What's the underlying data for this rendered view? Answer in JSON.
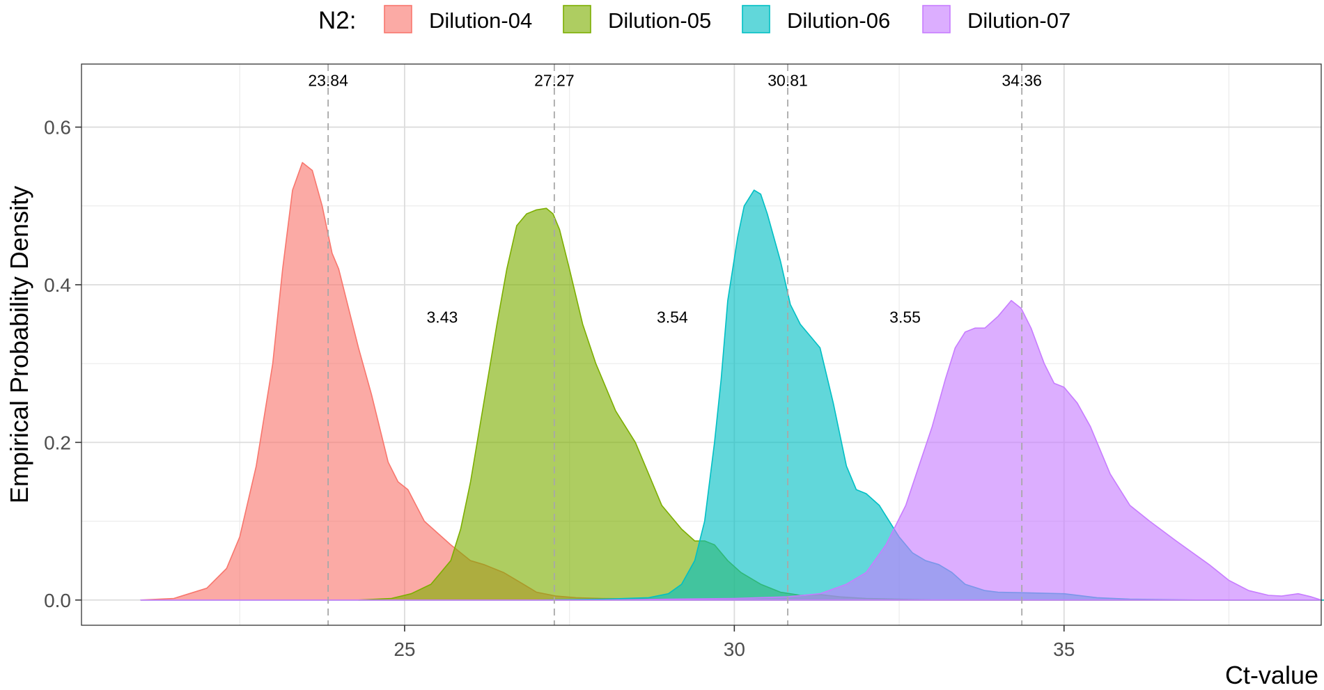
{
  "chart_data": {
    "type": "area",
    "title": "",
    "xlabel": "Ct-value",
    "ylabel": "Empirical Probability Density",
    "xlim": [
      20.1,
      38.9
    ],
    "ylim": [
      -0.032,
      0.68
    ],
    "x_ticks": [
      25,
      30,
      35
    ],
    "x_tick_labels": [
      "25",
      "30",
      "35"
    ],
    "y_ticks": [
      0.0,
      0.2,
      0.4,
      0.6
    ],
    "y_tick_labels": [
      "0.0",
      "0.2",
      "0.4",
      "0.6"
    ],
    "x_minor_grid": [
      22.5,
      27.5,
      32.5,
      37.5
    ],
    "y_minor_grid": [
      0.1,
      0.3,
      0.5
    ],
    "grid": true,
    "legend": {
      "title": "N2:",
      "position": "top"
    },
    "series": [
      {
        "name": "Dilution-04",
        "fill": "#F8766D",
        "stroke": "#F8766D",
        "points": [
          [
            21.0,
            0.0
          ],
          [
            21.5,
            0.002
          ],
          [
            22.0,
            0.015
          ],
          [
            22.3,
            0.04
          ],
          [
            22.5,
            0.08
          ],
          [
            22.75,
            0.17
          ],
          [
            23.0,
            0.3
          ],
          [
            23.15,
            0.42
          ],
          [
            23.3,
            0.52
          ],
          [
            23.45,
            0.555
          ],
          [
            23.6,
            0.545
          ],
          [
            23.75,
            0.5
          ],
          [
            23.9,
            0.44
          ],
          [
            24.0,
            0.42
          ],
          [
            24.3,
            0.32
          ],
          [
            24.5,
            0.26
          ],
          [
            24.75,
            0.175
          ],
          [
            24.9,
            0.15
          ],
          [
            25.05,
            0.14
          ],
          [
            25.3,
            0.1
          ],
          [
            25.5,
            0.085
          ],
          [
            25.7,
            0.07
          ],
          [
            26.0,
            0.05
          ],
          [
            26.2,
            0.045
          ],
          [
            26.5,
            0.035
          ],
          [
            26.8,
            0.02
          ],
          [
            27.0,
            0.01
          ],
          [
            27.3,
            0.005
          ],
          [
            27.6,
            0.003
          ],
          [
            28.0,
            0.002
          ],
          [
            29.0,
            0.001
          ],
          [
            30.0,
            0.0
          ],
          [
            39.0,
            0.0
          ]
        ]
      },
      {
        "name": "Dilution-05",
        "fill": "#7CAE00",
        "stroke": "#7CAE00",
        "points": [
          [
            24.3,
            0.0
          ],
          [
            24.8,
            0.002
          ],
          [
            25.1,
            0.008
          ],
          [
            25.4,
            0.02
          ],
          [
            25.7,
            0.05
          ],
          [
            25.85,
            0.09
          ],
          [
            26.0,
            0.15
          ],
          [
            26.2,
            0.25
          ],
          [
            26.4,
            0.35
          ],
          [
            26.55,
            0.42
          ],
          [
            26.7,
            0.475
          ],
          [
            26.85,
            0.49
          ],
          [
            27.0,
            0.495
          ],
          [
            27.15,
            0.497
          ],
          [
            27.25,
            0.49
          ],
          [
            27.35,
            0.47
          ],
          [
            27.5,
            0.42
          ],
          [
            27.7,
            0.35
          ],
          [
            27.9,
            0.3
          ],
          [
            28.0,
            0.28
          ],
          [
            28.2,
            0.24
          ],
          [
            28.5,
            0.2
          ],
          [
            28.7,
            0.16
          ],
          [
            28.9,
            0.12
          ],
          [
            29.2,
            0.09
          ],
          [
            29.4,
            0.075
          ],
          [
            29.55,
            0.075
          ],
          [
            29.7,
            0.07
          ],
          [
            29.9,
            0.05
          ],
          [
            30.1,
            0.035
          ],
          [
            30.4,
            0.02
          ],
          [
            30.7,
            0.01
          ],
          [
            31.0,
            0.006
          ],
          [
            31.3,
            0.007
          ],
          [
            31.6,
            0.004
          ],
          [
            32.0,
            0.002
          ],
          [
            33.0,
            0.0
          ],
          [
            39.0,
            0.0
          ]
        ]
      },
      {
        "name": "Dilution-06",
        "fill": "#00BFC4",
        "stroke": "#00BFC4",
        "points": [
          [
            21.0,
            0.0
          ],
          [
            26.0,
            0.0
          ],
          [
            27.0,
            0.0
          ],
          [
            28.0,
            0.001
          ],
          [
            28.7,
            0.003
          ],
          [
            29.0,
            0.008
          ],
          [
            29.2,
            0.02
          ],
          [
            29.4,
            0.05
          ],
          [
            29.55,
            0.1
          ],
          [
            29.7,
            0.2
          ],
          [
            29.8,
            0.28
          ],
          [
            29.9,
            0.38
          ],
          [
            30.05,
            0.46
          ],
          [
            30.15,
            0.5
          ],
          [
            30.3,
            0.52
          ],
          [
            30.4,
            0.515
          ],
          [
            30.5,
            0.49
          ],
          [
            30.7,
            0.43
          ],
          [
            30.85,
            0.375
          ],
          [
            31.0,
            0.35
          ],
          [
            31.15,
            0.335
          ],
          [
            31.3,
            0.32
          ],
          [
            31.5,
            0.25
          ],
          [
            31.7,
            0.17
          ],
          [
            31.85,
            0.14
          ],
          [
            32.0,
            0.135
          ],
          [
            32.2,
            0.12
          ],
          [
            32.35,
            0.1
          ],
          [
            32.5,
            0.08
          ],
          [
            32.7,
            0.06
          ],
          [
            32.9,
            0.05
          ],
          [
            33.1,
            0.045
          ],
          [
            33.3,
            0.035
          ],
          [
            33.5,
            0.02
          ],
          [
            33.8,
            0.012
          ],
          [
            34.0,
            0.01
          ],
          [
            34.5,
            0.009
          ],
          [
            35.0,
            0.008
          ],
          [
            35.5,
            0.003
          ],
          [
            36.0,
            0.001
          ],
          [
            37.0,
            0.0
          ],
          [
            39.0,
            0.0
          ]
        ]
      },
      {
        "name": "Dilution-07",
        "fill": "#C77CFF",
        "stroke": "#C77CFF",
        "points": [
          [
            21.0,
            0.0
          ],
          [
            26.0,
            0.0
          ],
          [
            28.0,
            0.0
          ],
          [
            29.0,
            0.001
          ],
          [
            30.0,
            0.002
          ],
          [
            30.8,
            0.004
          ],
          [
            31.3,
            0.008
          ],
          [
            31.7,
            0.02
          ],
          [
            32.0,
            0.035
          ],
          [
            32.3,
            0.07
          ],
          [
            32.6,
            0.12
          ],
          [
            32.8,
            0.17
          ],
          [
            33.0,
            0.22
          ],
          [
            33.2,
            0.28
          ],
          [
            33.35,
            0.32
          ],
          [
            33.5,
            0.34
          ],
          [
            33.65,
            0.345
          ],
          [
            33.8,
            0.345
          ],
          [
            34.0,
            0.36
          ],
          [
            34.2,
            0.38
          ],
          [
            34.35,
            0.37
          ],
          [
            34.5,
            0.345
          ],
          [
            34.7,
            0.3
          ],
          [
            34.85,
            0.275
          ],
          [
            35.0,
            0.27
          ],
          [
            35.2,
            0.25
          ],
          [
            35.4,
            0.22
          ],
          [
            35.7,
            0.16
          ],
          [
            36.0,
            0.12
          ],
          [
            36.3,
            0.1
          ],
          [
            36.7,
            0.075
          ],
          [
            37.2,
            0.045
          ],
          [
            37.5,
            0.025
          ],
          [
            37.8,
            0.012
          ],
          [
            38.1,
            0.006
          ],
          [
            38.3,
            0.005
          ],
          [
            38.55,
            0.008
          ],
          [
            38.75,
            0.004
          ],
          [
            38.9,
            0.0
          ]
        ]
      }
    ],
    "reference_lines": [
      {
        "x": 23.84,
        "label": "23.84"
      },
      {
        "x": 27.27,
        "label": "27.27"
      },
      {
        "x": 30.81,
        "label": "30.81"
      },
      {
        "x": 34.36,
        "label": "34.36"
      }
    ],
    "peak_label_y": 0.652,
    "gap_labels": [
      {
        "x": 25.57,
        "y": 0.352,
        "label": "3.43"
      },
      {
        "x": 29.06,
        "y": 0.352,
        "label": "3.54"
      },
      {
        "x": 32.59,
        "y": 0.352,
        "label": "3.55"
      }
    ]
  }
}
